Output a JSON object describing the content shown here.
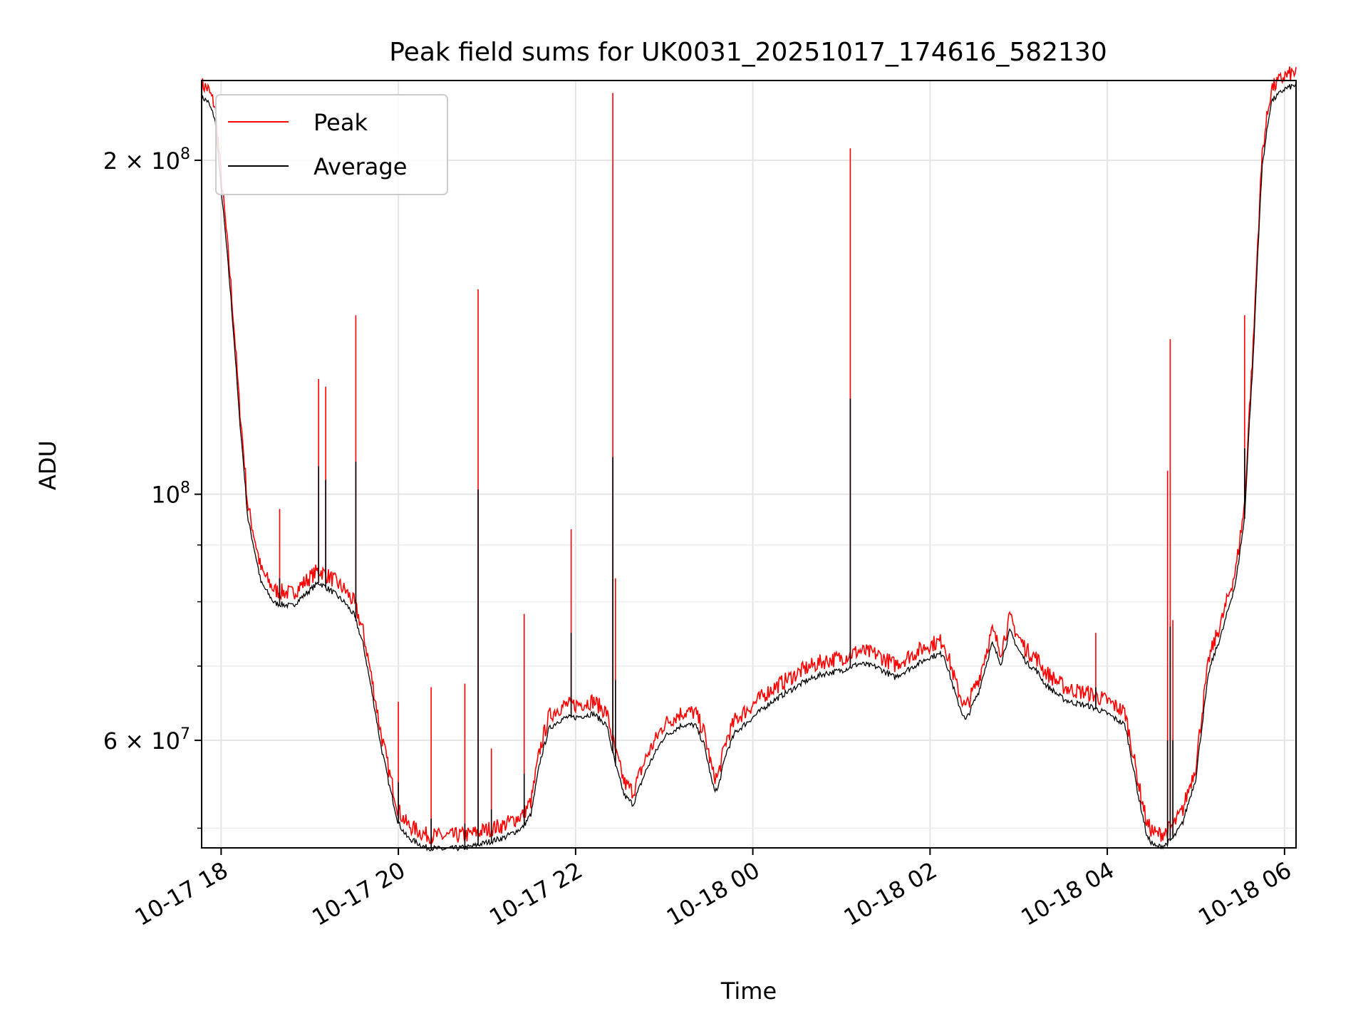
{
  "chart_data": {
    "type": "line",
    "title": "Peak field sums for UK0031_20251017_174616_582130",
    "xlabel": "Time",
    "ylabel": "ADU",
    "yscale": "log",
    "xlim_hours": [
      17.78,
      30.13
    ],
    "ylim": [
      48000000,
      236000000
    ],
    "grid": true,
    "legend_position": "upper-left",
    "x_ticks": [
      {
        "hour": 18,
        "label": "10-17 18"
      },
      {
        "hour": 20,
        "label": "10-17 20"
      },
      {
        "hour": 22,
        "label": "10-17 22"
      },
      {
        "hour": 24,
        "label": "10-18 00"
      },
      {
        "hour": 26,
        "label": "10-18 02"
      },
      {
        "hour": 28,
        "label": "10-18 04"
      },
      {
        "hour": 30,
        "label": "10-18 06"
      }
    ],
    "y_ticks": [
      {
        "value": 200000000,
        "mantissa": "2",
        "exponent": "8"
      },
      {
        "value": 100000000,
        "mantissa": "",
        "exponent": "8"
      },
      {
        "value": 60000000,
        "mantissa": "6",
        "exponent": "7"
      }
    ],
    "y_minor_ticks": [
      50000000,
      70000000,
      80000000,
      90000000
    ],
    "series": [
      {
        "name": "Peak",
        "color": "#ff0000"
      },
      {
        "name": "Average",
        "color": "#000000"
      }
    ],
    "baseline": {
      "hours": [
        17.78,
        17.85,
        17.93,
        18.0,
        18.1,
        18.2,
        18.3,
        18.45,
        18.6,
        18.8,
        18.95,
        19.1,
        19.25,
        19.4,
        19.5,
        19.6,
        19.7,
        19.8,
        19.9,
        20.0,
        20.1,
        20.3,
        20.5,
        20.8,
        21.0,
        21.2,
        21.4,
        21.5,
        21.6,
        21.7,
        21.8,
        21.9,
        22.0,
        22.2,
        22.35,
        22.45,
        22.55,
        22.65,
        22.8,
        23.0,
        23.2,
        23.35,
        23.45,
        23.55,
        23.6,
        23.7,
        23.8,
        24.0,
        24.2,
        24.4,
        24.6,
        24.8,
        25.0,
        25.2,
        25.4,
        25.6,
        25.8,
        26.0,
        26.15,
        26.3,
        26.4,
        26.55,
        26.7,
        26.8,
        26.9,
        27.0,
        27.1,
        27.2,
        27.3,
        27.4,
        27.5,
        27.6,
        27.8,
        28.0,
        28.2,
        28.35,
        28.45,
        28.55,
        28.65,
        28.75,
        28.85,
        29.0,
        29.15,
        29.3,
        29.45,
        29.55,
        29.65,
        29.75,
        29.85,
        30.0,
        30.13
      ],
      "values": [
        230000000,
        228000000,
        220000000,
        190000000,
        155000000,
        120000000,
        96000000,
        84000000,
        80500000,
        80000000,
        82000000,
        84000000,
        82500000,
        80500000,
        78500000,
        74000000,
        67000000,
        60000000,
        55000000,
        51000000,
        49500000,
        48500000,
        48300000,
        48500000,
        49000000,
        49500000,
        50500000,
        52000000,
        58000000,
        62000000,
        63000000,
        63500000,
        63500000,
        64000000,
        62500000,
        57500000,
        54000000,
        53000000,
        57000000,
        61000000,
        62500000,
        62500000,
        60000000,
        55000000,
        54500000,
        59000000,
        61500000,
        63500000,
        65500000,
        67000000,
        68500000,
        69500000,
        70000000,
        71000000,
        70500000,
        69000000,
        70500000,
        72000000,
        72500000,
        66000000,
        63000000,
        67000000,
        74000000,
        71000000,
        76000000,
        73000000,
        71000000,
        70000000,
        68000000,
        67000000,
        66000000,
        65500000,
        65000000,
        64000000,
        62500000,
        54000000,
        49500000,
        48500000,
        48700000,
        49500000,
        51000000,
        56000000,
        70000000,
        76000000,
        84000000,
        96000000,
        135000000,
        200000000,
        228000000,
        234000000,
        236000000
      ]
    },
    "spikes": [
      {
        "hour": 18.66,
        "peak": 97000000,
        "average": 84000000
      },
      {
        "hour": 19.1,
        "peak": 127000000,
        "average": 106000000
      },
      {
        "hour": 19.18,
        "peak": 125000000,
        "average": 103000000
      },
      {
        "hour": 19.52,
        "peak": 145000000,
        "average": 107000000
      },
      {
        "hour": 20.0,
        "peak": 65000000,
        "average": 55000000
      },
      {
        "hour": 20.37,
        "peak": 67000000,
        "average": 51000000
      },
      {
        "hour": 20.75,
        "peak": 67500000,
        "average": 50500000
      },
      {
        "hour": 20.9,
        "peak": 153000000,
        "average": 101000000
      },
      {
        "hour": 21.05,
        "peak": 59000000,
        "average": 52000000
      },
      {
        "hour": 21.42,
        "peak": 78000000,
        "average": 56000000
      },
      {
        "hour": 21.95,
        "peak": 93000000,
        "average": 75000000
      },
      {
        "hour": 22.42,
        "peak": 230000000,
        "average": 108000000
      },
      {
        "hour": 22.45,
        "peak": 84000000,
        "average": 68000000
      },
      {
        "hour": 25.1,
        "peak": 205000000,
        "average": 122000000
      },
      {
        "hour": 27.87,
        "peak": 75000000,
        "average": 67000000
      },
      {
        "hour": 28.68,
        "peak": 105000000,
        "average": 60000000
      },
      {
        "hour": 28.71,
        "peak": 138000000,
        "average": 76000000
      },
      {
        "hour": 28.74,
        "peak": 77000000,
        "average": 60000000
      },
      {
        "hour": 29.55,
        "peak": 145000000,
        "average": 110000000
      }
    ]
  }
}
